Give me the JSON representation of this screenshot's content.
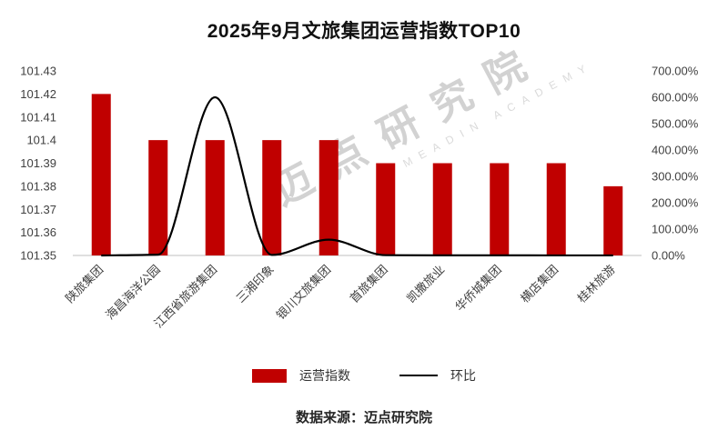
{
  "title": "2025年9月文旅集团运营指数TOP10",
  "footer": "数据来源：迈点研究院",
  "watermark": {
    "main": "迈点研究院",
    "sub": "MEADIN ACADEMY"
  },
  "legend": {
    "bar_label": "运营指数",
    "line_label": "环比"
  },
  "colors": {
    "bar": "#C00000",
    "line": "#000000",
    "axis_text": "#404040",
    "axis_line": "#bfbfbf"
  },
  "chart_data": {
    "type": "bar+line",
    "title": "2025年9月文旅集团运营指数TOP10",
    "categories": [
      "陕旅集团",
      "海昌海洋公园",
      "江西省旅游集团",
      "三湘印象",
      "银川文旅集团",
      "首旅集团",
      "凯撒旅业",
      "华侨城集团",
      "横店集团",
      "桂林旅游"
    ],
    "series": [
      {
        "name": "运营指数",
        "type": "bar",
        "axis": "left",
        "values": [
          101.42,
          101.4,
          101.4,
          101.4,
          101.4,
          101.39,
          101.39,
          101.39,
          101.39,
          101.38
        ]
      },
      {
        "name": "环比",
        "type": "line",
        "axis": "right",
        "values": [
          0,
          3,
          600,
          2,
          60,
          1,
          0.5,
          0.4,
          0.3,
          0.2
        ]
      }
    ],
    "left_axis": {
      "min": 101.35,
      "max": 101.43,
      "ticks": [
        "101.43",
        "101.42",
        "101.41",
        "101.4",
        "101.39",
        "101.38",
        "101.37",
        "101.36",
        "101.35"
      ]
    },
    "right_axis": {
      "min": 0,
      "max": 700,
      "ticks": [
        "700.00%",
        "600.00%",
        "500.00%",
        "400.00%",
        "300.00%",
        "200.00%",
        "100.00%",
        "0.00%"
      ]
    },
    "grid": false,
    "legend_position": "bottom"
  }
}
